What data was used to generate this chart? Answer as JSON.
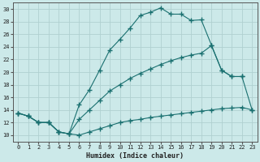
{
  "title": "",
  "xlabel": "Humidex (Indice chaleur)",
  "ylabel": "",
  "xlim": [
    -0.5,
    23.5
  ],
  "ylim": [
    9,
    31
  ],
  "background_color": "#cce9e9",
  "grid_color": "#b0d0d0",
  "line_color": "#1a7070",
  "xticks": [
    0,
    1,
    2,
    3,
    4,
    5,
    6,
    7,
    8,
    9,
    10,
    11,
    12,
    13,
    14,
    15,
    16,
    17,
    18,
    19,
    20,
    21,
    22,
    23
  ],
  "yticks": [
    10,
    12,
    14,
    16,
    18,
    20,
    22,
    24,
    26,
    28,
    30
  ],
  "line1_x": [
    0,
    1,
    2,
    3,
    4,
    5,
    6,
    7,
    8,
    9,
    10,
    11,
    12,
    13,
    14,
    15,
    16,
    17,
    18,
    19,
    20,
    21,
    22,
    23
  ],
  "line1_y": [
    13.5,
    13.0,
    12.0,
    12.0,
    10.5,
    10.2,
    10.0,
    10.5,
    11.0,
    11.5,
    12.0,
    12.3,
    12.5,
    12.8,
    13.0,
    13.2,
    13.4,
    13.6,
    13.8,
    14.0,
    14.2,
    14.3,
    14.4,
    14.0
  ],
  "line2_x": [
    0,
    1,
    2,
    3,
    4,
    5,
    6,
    7,
    8,
    9,
    10,
    11,
    12,
    13,
    14,
    15,
    16,
    17,
    18,
    19,
    20,
    21,
    22
  ],
  "line2_y": [
    13.5,
    13.0,
    12.0,
    12.0,
    10.5,
    10.2,
    14.8,
    17.2,
    20.3,
    23.5,
    25.2,
    27.0,
    29.0,
    29.5,
    30.2,
    29.2,
    29.2,
    28.2,
    28.3,
    24.3,
    20.3,
    19.3,
    19.3
  ],
  "line3_x": [
    0,
    1,
    2,
    3,
    4,
    5,
    6,
    7,
    8,
    9,
    10,
    11,
    12,
    13,
    14,
    15,
    16,
    17,
    18,
    19,
    20,
    21,
    22,
    23
  ],
  "line3_y": [
    13.5,
    13.0,
    12.0,
    12.0,
    10.5,
    10.2,
    12.5,
    14.0,
    15.5,
    17.0,
    18.0,
    19.0,
    19.8,
    20.5,
    21.2,
    21.8,
    22.3,
    22.7,
    23.0,
    24.2,
    20.3,
    19.3,
    19.3,
    14.0
  ]
}
